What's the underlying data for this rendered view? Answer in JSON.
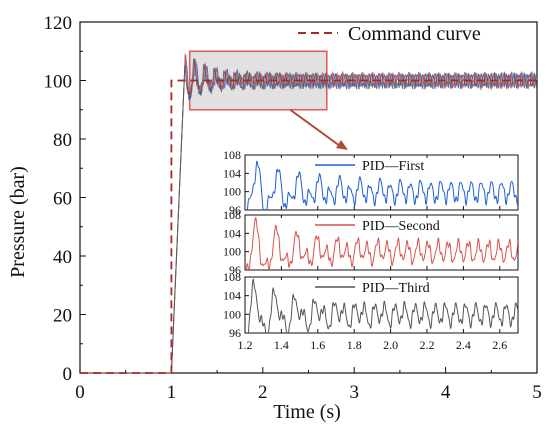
{
  "chart_data": {
    "type": "line",
    "xlabel": "Time (s)",
    "ylabel": "Pressure (bar)",
    "xlim": [
      0,
      5
    ],
    "ylim": [
      0,
      120
    ],
    "xticks": [
      "0",
      "1",
      "2",
      "3",
      "4",
      "5"
    ],
    "yticks": [
      "0",
      "20",
      "40",
      "60",
      "80",
      "100",
      "120"
    ],
    "legend": {
      "label": "Command curve",
      "placement": "top-right"
    },
    "command_curve": {
      "name": "Command curve",
      "color": "#a52a2a",
      "x": [
        0,
        1,
        1,
        5
      ],
      "y": [
        0,
        0,
        100,
        100
      ]
    },
    "response_series": [
      {
        "name": "PID—First",
        "color": "#1f5fd6"
      },
      {
        "name": "PID—Second",
        "color": "#d9534f"
      },
      {
        "name": "PID—Third",
        "color": "#555555"
      }
    ],
    "response_shape": {
      "rise_start_time": 1.0,
      "rise_end_time": 1.15,
      "peak_value": 107,
      "steady_state_value": 100,
      "oscillation_amplitude": 2
    },
    "zoom_region": {
      "xlim": [
        1.2,
        2.7
      ],
      "ylim": [
        90,
        110
      ]
    },
    "insets": [
      {
        "label": "PID—First",
        "color": "#1f5fd6"
      },
      {
        "label": "PID—Second",
        "color": "#d9534f"
      },
      {
        "label": "PID—Third",
        "color": "#555555"
      }
    ],
    "inset_xlim": [
      1.2,
      2.7
    ],
    "inset_ylim": [
      96,
      108
    ],
    "inset_xticks": [
      "1.2",
      "1.4",
      "1.6",
      "1.8",
      "2.0",
      "2.2",
      "2.4",
      "2.6"
    ],
    "inset_yticks": [
      "96",
      "100",
      "104",
      "108"
    ]
  }
}
